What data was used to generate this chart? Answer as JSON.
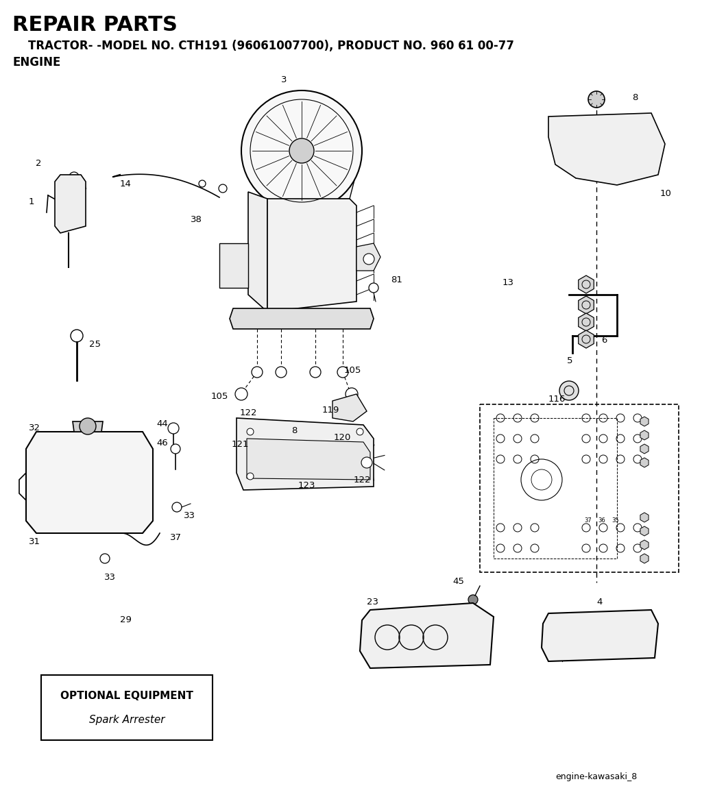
{
  "title": "REPAIR PARTS",
  "subtitle": "    TRACTOR- -MODEL NO. CTH191 (96061007700), PRODUCT NO. 960 61 00-77",
  "subtitle2": "ENGINE",
  "footer": "engine-kawasaki_8",
  "optional_box_title": "OPTIONAL EQUIPMENT",
  "optional_box_text": "Spark Arrester",
  "bg_color": "#ffffff"
}
